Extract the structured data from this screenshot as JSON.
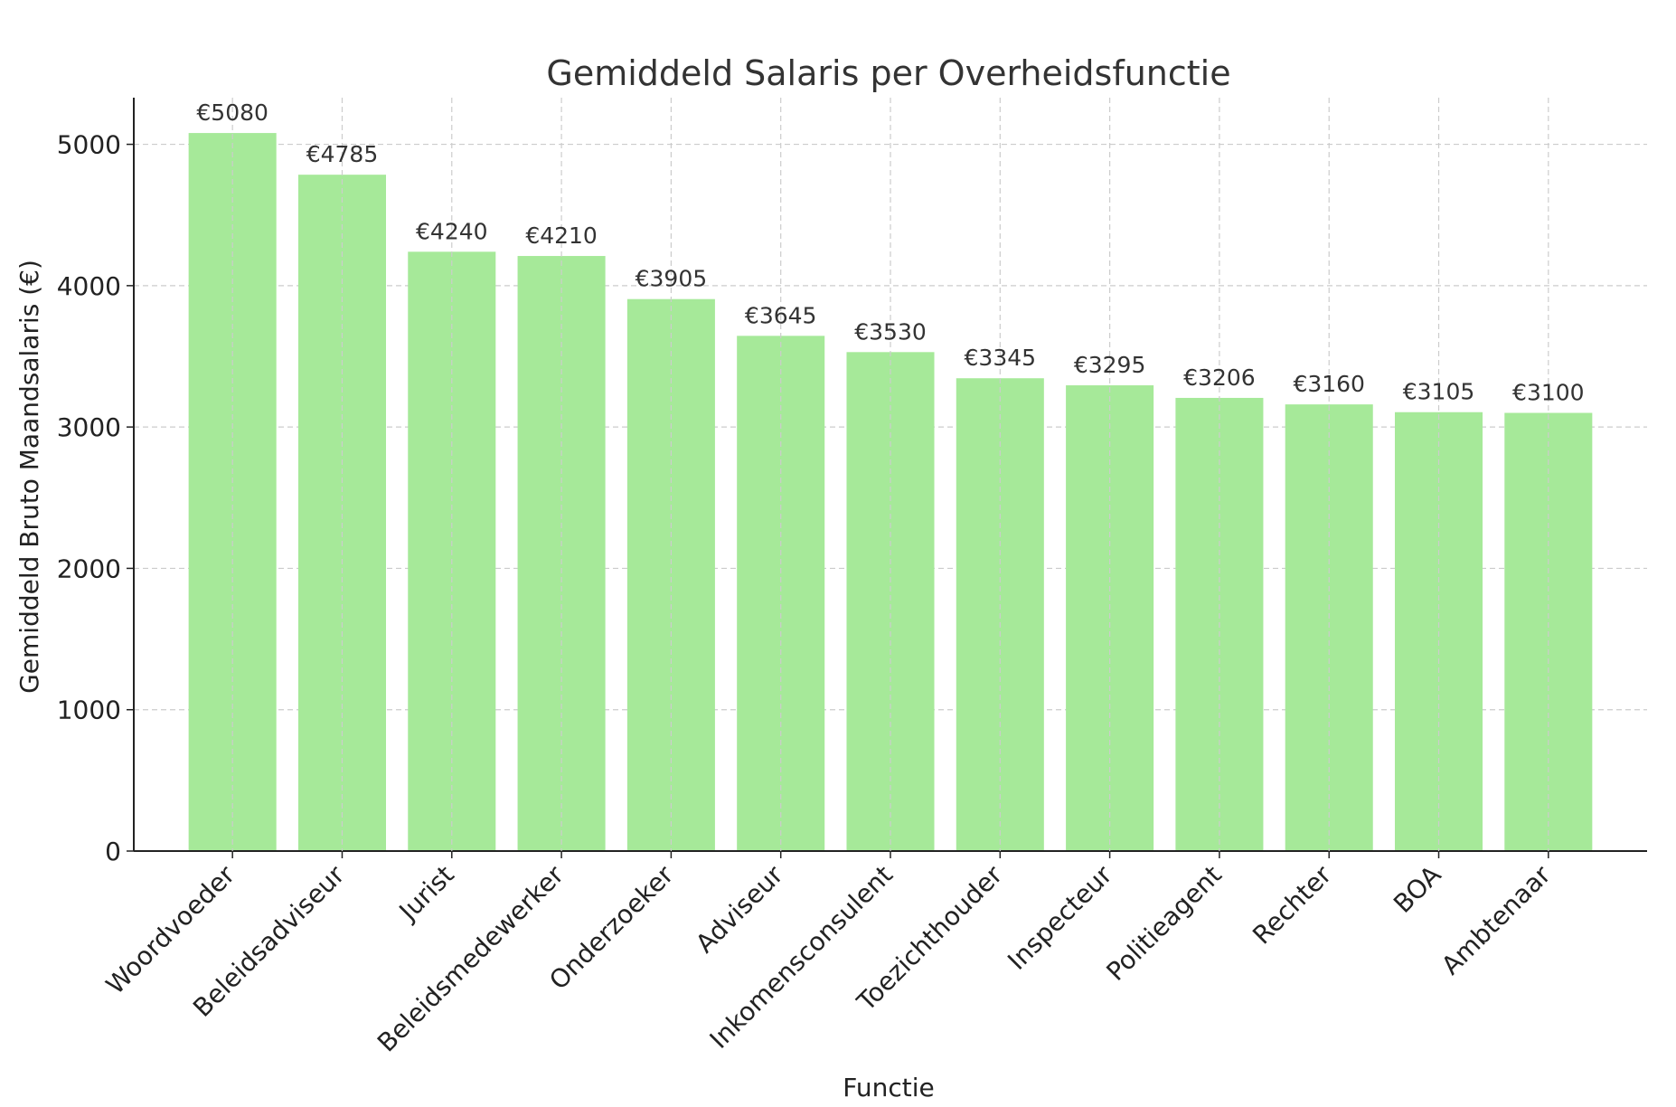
{
  "chart_data": {
    "type": "bar",
    "title": "Gemiddeld Salaris per Overheidsfunctie",
    "xlabel": "Functie",
    "ylabel": "Gemiddeld Bruto Maandsalaris (€)",
    "categories": [
      "Woordvoeder",
      "Beleidsadviseur",
      "Jurist",
      "Beleidsmedewerker",
      "Onderzoeker",
      "Adviseur",
      "Inkomensconsulent",
      "Toezichthouder",
      "Inspecteur",
      "Politieagent",
      "Rechter",
      "BOA",
      "Ambtenaar"
    ],
    "values": [
      5080,
      4785,
      4240,
      4210,
      3905,
      3645,
      3530,
      3345,
      3295,
      3206,
      3160,
      3105,
      3100
    ],
    "data_labels": [
      "€5080",
      "€4785",
      "€4240",
      "€4210",
      "€3905",
      "€3645",
      "€3530",
      "€3345",
      "€3295",
      "€3206",
      "€3160",
      "€3105",
      "€3100"
    ],
    "y_ticks": [
      0,
      1000,
      2000,
      3000,
      4000,
      5000
    ],
    "ylim": [
      0,
      5330
    ],
    "grid": true,
    "bar_color": "#a6e999",
    "grid_color": "#cccccc",
    "text_color": "#333333"
  }
}
